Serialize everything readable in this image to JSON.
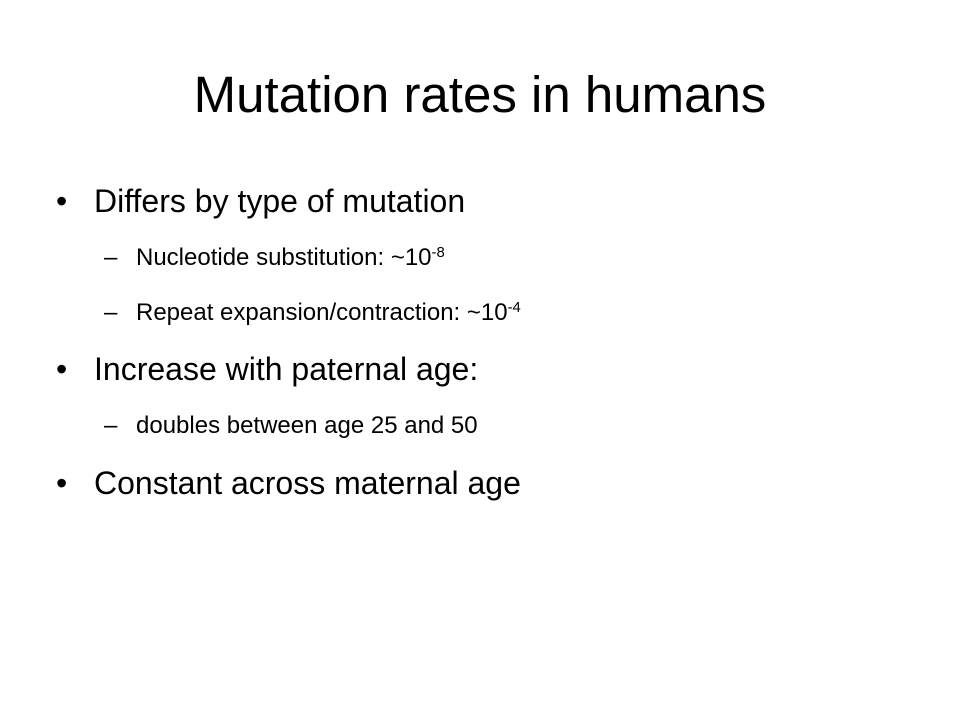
{
  "slide": {
    "title": "Mutation rates in humans",
    "bullets": [
      {
        "text": "Differs by type of mutation",
        "sub": [
          {
            "text": "Nucleotide substitution:  ~10",
            "exp": "-8"
          },
          {
            "text": "Repeat expansion/contraction:  ~10",
            "exp": "-4"
          }
        ]
      },
      {
        "text": "Increase with paternal age:",
        "sub": [
          {
            "text": "doubles between age 25 and 50"
          }
        ]
      },
      {
        "text": "Constant across maternal age"
      }
    ],
    "bullet_marker": "•",
    "sub_marker": "–"
  }
}
